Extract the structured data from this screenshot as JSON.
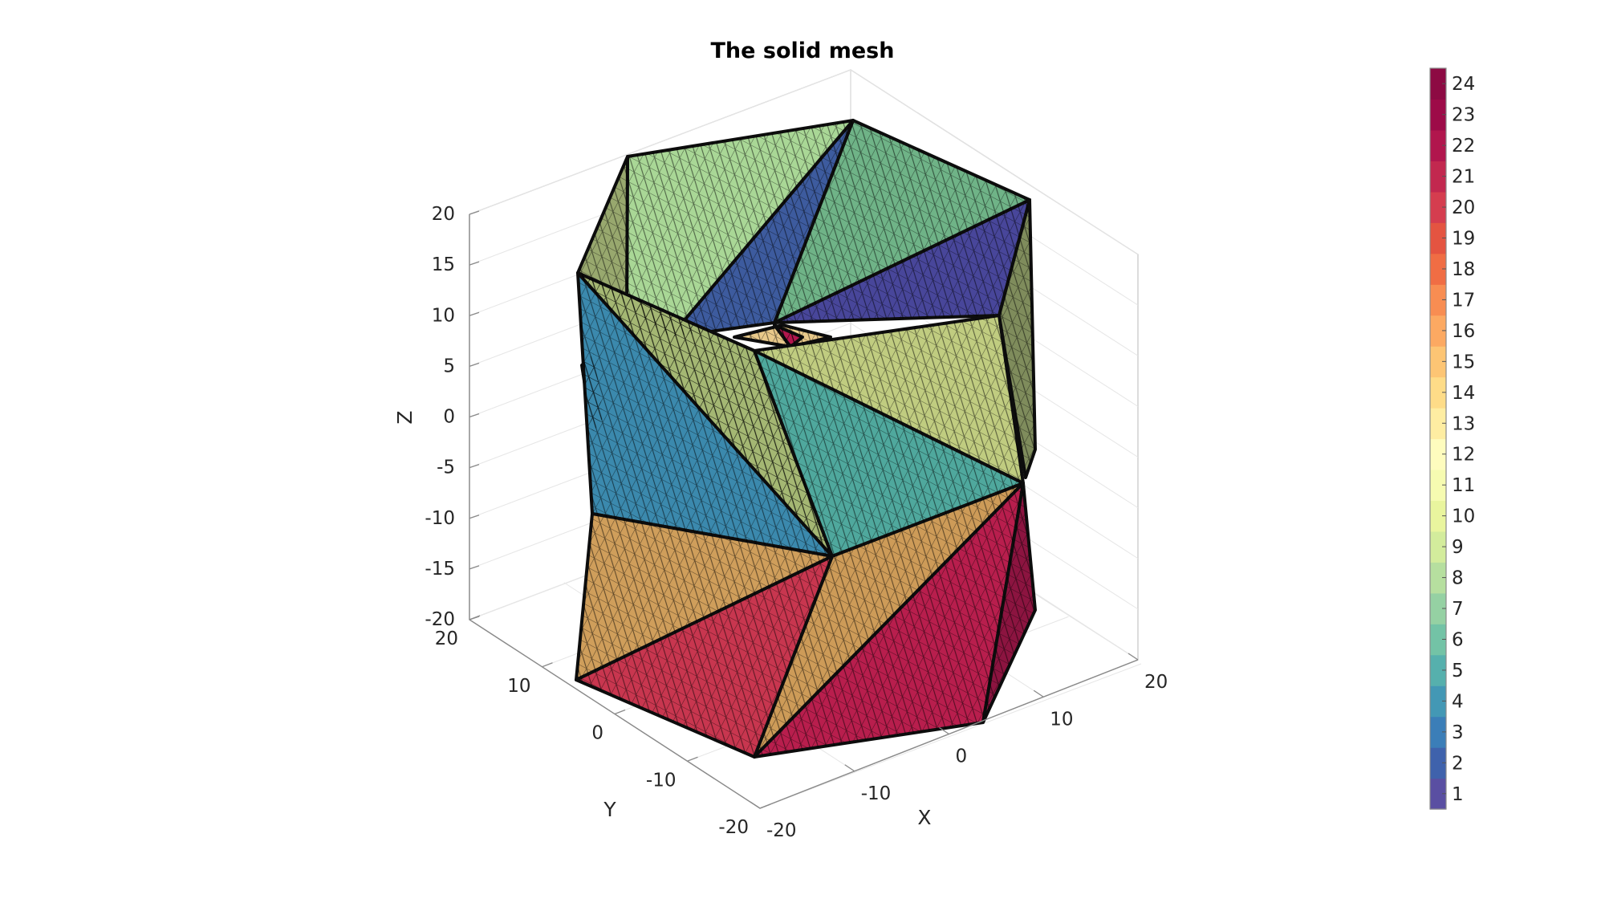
{
  "chart_data": {
    "type": "mesh3d",
    "title": "The solid mesh",
    "xlabel": "X",
    "ylabel": "Y",
    "zlabel": "Z",
    "xlim": [
      -20,
      20
    ],
    "ylim": [
      -20,
      20
    ],
    "zlim": [
      -20,
      20
    ],
    "x_ticks": [
      "-20",
      "-10",
      "0",
      "10",
      "20"
    ],
    "y_ticks": [
      "-20",
      "-10",
      "0",
      "10",
      "20"
    ],
    "z_ticks": [
      "-20",
      "-15",
      "-10",
      "-5",
      "0",
      "5",
      "10",
      "15",
      "20"
    ],
    "grid": true,
    "colorbar": {
      "location": "right",
      "ticks": [
        "1",
        "2",
        "3",
        "4",
        "5",
        "6",
        "7",
        "8",
        "9",
        "10",
        "11",
        "12",
        "13",
        "14",
        "15",
        "16",
        "17",
        "18",
        "19",
        "20",
        "21",
        "22",
        "23",
        "24"
      ],
      "colors": [
        "#5a4fa2",
        "#3f62ac",
        "#3b7eb8",
        "#4398b5",
        "#56b0ad",
        "#73c3a6",
        "#95d1a3",
        "#b6df9f",
        "#d3ec9c",
        "#e9f59e",
        "#f6fbb1",
        "#fefcbe",
        "#feeda2",
        "#fedc88",
        "#fdc574",
        "#fca962",
        "#f88d52",
        "#f06d44",
        "#e45441",
        "#d53d4f",
        "#c2284f",
        "#b1164d",
        "#9d0b48",
        "#8d0a43"
      ]
    },
    "faces": [
      {
        "name": "top-left",
        "fill": "#a9d796"
      },
      {
        "name": "top-inner-blue",
        "fill": "#3d5b9e"
      },
      {
        "name": "top-right",
        "fill": "#6fb387"
      },
      {
        "name": "inner-purple",
        "fill": "#48469a"
      },
      {
        "name": "left-side-olive",
        "fill": "#98a86e"
      },
      {
        "name": "right-side-olive",
        "fill": "#7f8c5c"
      },
      {
        "name": "upper-left-blue",
        "fill": "#3b89ad"
      },
      {
        "name": "upper-center-olive",
        "fill": "#a4b773"
      },
      {
        "name": "upper-right-olive",
        "fill": "#c0cc80"
      },
      {
        "name": "upper-center-teal",
        "fill": "#4fa89d"
      },
      {
        "name": "lower-left-tan",
        "fill": "#cf9e5b"
      },
      {
        "name": "lower-center-tan",
        "fill": "#cd9b58"
      },
      {
        "name": "lower-left-red",
        "fill": "#c8364f"
      },
      {
        "name": "lower-right-crimson",
        "fill": "#b81e4d"
      },
      {
        "name": "lower-right-side",
        "fill": "#8c1440"
      },
      {
        "name": "hole-tan",
        "fill": "#e8c98a"
      },
      {
        "name": "hole-red",
        "fill": "#b1164d"
      },
      {
        "name": "left-side-strip",
        "fill": "#2d4f6d"
      }
    ]
  }
}
